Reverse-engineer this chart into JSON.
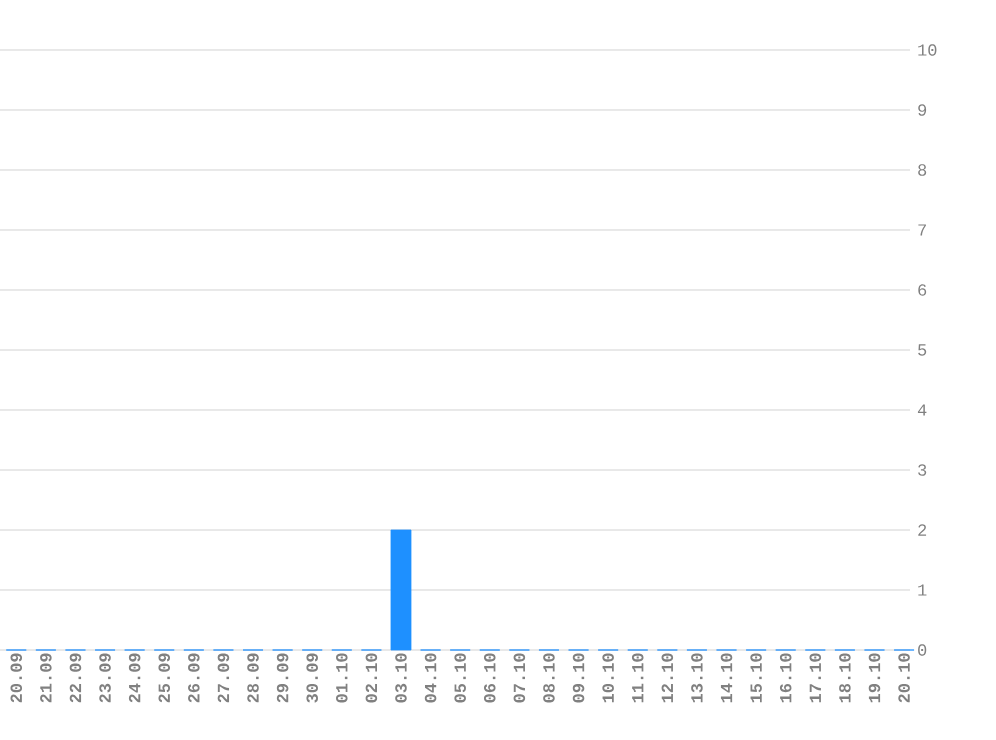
{
  "chart_data": {
    "type": "bar",
    "categories": [
      "20.09",
      "21.09",
      "22.09",
      "23.09",
      "24.09",
      "25.09",
      "26.09",
      "27.09",
      "28.09",
      "29.09",
      "30.09",
      "01.10",
      "02.10",
      "03.10",
      "04.10",
      "05.10",
      "06.10",
      "07.10",
      "08.10",
      "09.10",
      "10.10",
      "11.10",
      "12.10",
      "13.10",
      "14.10",
      "15.10",
      "16.10",
      "17.10",
      "18.10",
      "19.10",
      "20.10"
    ],
    "values": [
      0,
      0,
      0,
      0,
      0,
      0,
      0,
      0,
      0,
      0,
      0,
      0,
      0,
      2,
      0,
      0,
      0,
      0,
      0,
      0,
      0,
      0,
      0,
      0,
      0,
      0,
      0,
      0,
      0,
      0,
      0
    ],
    "color": "#1e90ff",
    "ylim": [
      0,
      10
    ],
    "yticks": [
      0,
      1,
      2,
      3,
      4,
      5,
      6,
      7,
      8,
      9,
      10
    ],
    "grid": "y"
  }
}
